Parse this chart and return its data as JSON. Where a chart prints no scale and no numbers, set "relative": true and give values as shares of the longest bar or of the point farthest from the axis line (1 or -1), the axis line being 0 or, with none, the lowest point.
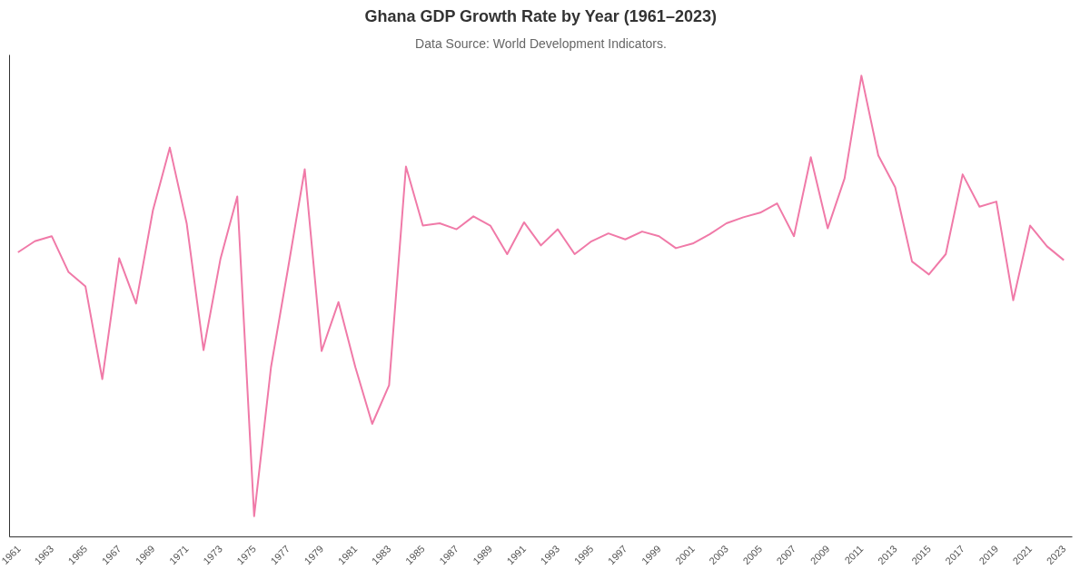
{
  "chart_data": {
    "type": "line",
    "title": "Ghana GDP Growth Rate by Year (1961–2023)",
    "subtitle": "Data Source: World Development Indicators.",
    "relative": true,
    "categories": [
      "1961",
      null,
      "1963",
      null,
      "1965",
      null,
      "1967",
      null,
      "1969",
      null,
      "1971",
      null,
      "1973",
      null,
      "1975",
      null,
      "1977",
      null,
      "1979",
      null,
      "1981",
      null,
      "1983",
      null,
      "1985",
      null,
      "1987",
      null,
      "1989",
      null,
      "1991",
      null,
      "1993",
      null,
      "1995",
      null,
      "1997",
      null,
      "1999",
      null,
      "2001",
      null,
      "2003",
      null,
      "2005",
      null,
      "2007",
      null,
      "2009",
      null,
      "2011",
      null,
      "2013",
      null,
      "2015",
      null,
      "2017",
      null,
      "2019",
      null,
      "2021",
      null,
      "2023"
    ],
    "series": [
      {
        "color": "#f07aa8",
        "values": [
          0.617,
          0.641,
          0.652,
          0.574,
          0.543,
          0.342,
          0.604,
          0.506,
          0.708,
          0.844,
          0.68,
          0.405,
          0.602,
          0.738,
          0.045,
          0.368,
          0.58,
          0.797,
          0.403,
          0.509,
          0.368,
          0.245,
          0.329,
          0.803,
          0.675,
          0.68,
          0.667,
          0.695,
          0.675,
          0.613,
          0.682,
          0.632,
          0.667,
          0.613,
          0.641,
          0.658,
          0.645,
          0.662,
          0.652,
          0.626,
          0.636,
          0.656,
          0.68,
          0.693,
          0.703,
          0.723,
          0.652,
          0.823,
          0.669,
          0.777,
          1,
          0.827,
          0.758,
          0.597,
          0.569,
          0.613,
          0.786,
          0.716,
          0.727,
          0.513,
          0.675,
          0.63,
          0.6
        ]
      }
    ],
    "grid": false,
    "marker": "none",
    "line_style": "solid"
  }
}
